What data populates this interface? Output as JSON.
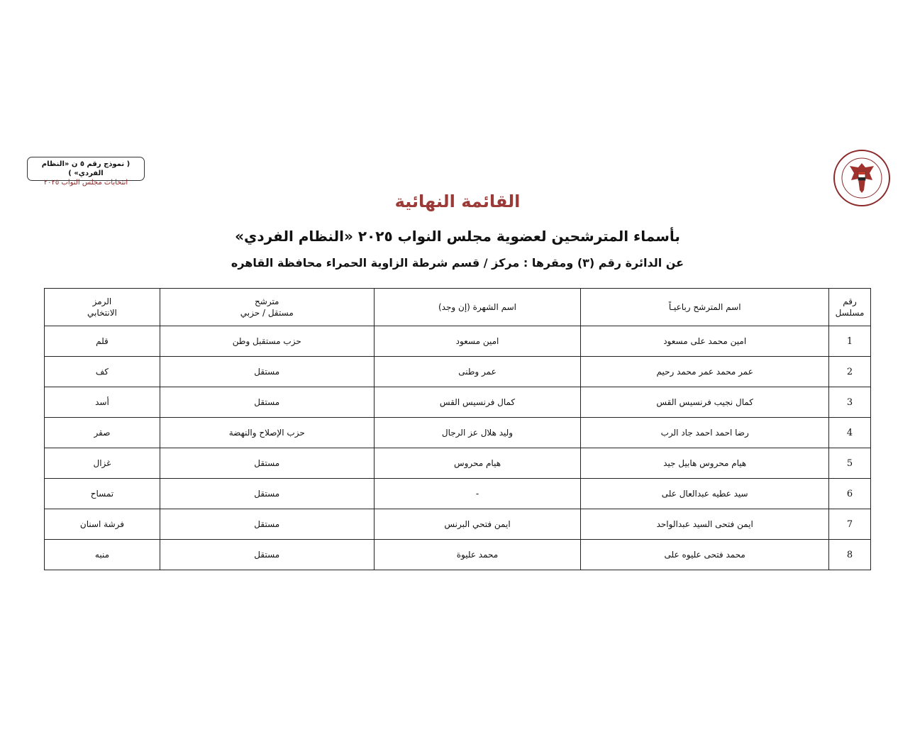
{
  "form_box": {
    "line1": "( نموذج رقم ٥ ن «النظام الفردي» )",
    "line2": "انتخابات مجلس النواب ٢٠٢٥"
  },
  "logo": {
    "text": "الهيئة الوطنية للانتخابات - National Election Authority - Egypt"
  },
  "heading": {
    "title": "القائمة النهائية",
    "subtitle": "بأسماء المترشحين لعضوية مجلس النواب ٢٠٢٥ «النظام الفردي»",
    "district": "عن الدائرة رقم  (٣)   ومقرها : مركز / قسم شرطة  الزاوية الحمراء    محافظة  القاهره"
  },
  "table": {
    "headers": {
      "serial": [
        "رقم",
        "مسلسل"
      ],
      "name": "اسم المترشح رباعيـاً",
      "nickname": "اسم الشهرة (إن وجد)",
      "type": [
        "مترشح",
        "مستقل / حزبي"
      ],
      "symbol": [
        "الرمز",
        "الانتخابي"
      ]
    },
    "rows": [
      {
        "serial": "1",
        "name": "امين محمد على مسعود",
        "nickname": "امين مسعود",
        "type": "حزب مستقبل وطن",
        "symbol": "قلم"
      },
      {
        "serial": "2",
        "name": "عمر محمد عمر محمد رحيم",
        "nickname": "عمر وطنى",
        "type": "مستقل",
        "symbol": "كف"
      },
      {
        "serial": "3",
        "name": "كمال نجيب فرنسيس القس",
        "nickname": "كمال فرنسيس القس",
        "type": "مستقل",
        "symbol": "أسد"
      },
      {
        "serial": "4",
        "name": "رضا احمد احمد جاد الرب",
        "nickname": "وليد هلال عز الرجال",
        "type": "حزب الإصلاح والنهضة",
        "symbol": "صقر"
      },
      {
        "serial": "5",
        "name": "هيام محروس هابيل جيد",
        "nickname": "هيام محروس",
        "type": "مستقل",
        "symbol": "غزال"
      },
      {
        "serial": "6",
        "name": "سيد عطيه عبدالعال على",
        "nickname": "-",
        "type": "مستقل",
        "symbol": "تمساح"
      },
      {
        "serial": "7",
        "name": "ايمن فتحى السيد عبدالواحد",
        "nickname": "ايمن فتحي البرنس",
        "type": "مستقل",
        "symbol": "فرشة اسنان"
      },
      {
        "serial": "8",
        "name": "محمد فتحى عليوه على",
        "nickname": "محمد عليوة",
        "type": "مستقل",
        "symbol": "منبه"
      }
    ]
  }
}
